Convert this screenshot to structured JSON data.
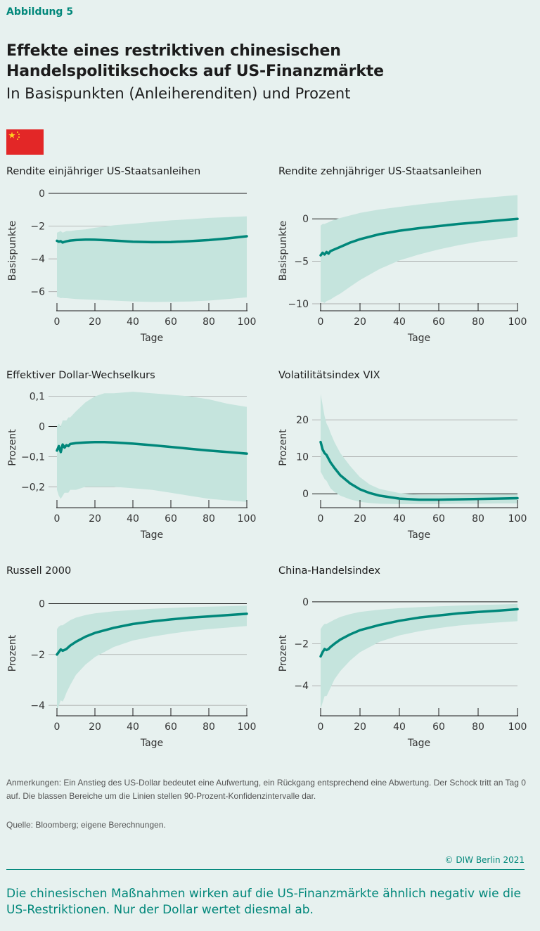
{
  "figure_label": "Abbildung 5",
  "title": "Effekte eines restriktiven chinesischen Handelspolitikschocks auf US-Finanzmärkte",
  "subtitle": "In Basispunkten (Anleiherenditen) und Prozent",
  "flag": {
    "name": "china-flag",
    "bg_color": "#e32727",
    "star_color": "#ffd21f"
  },
  "colors": {
    "line": "#00877a",
    "band": "#c5e4dd",
    "axis": "#1c1c1c",
    "grid": "#9a9a9a"
  },
  "notes": "Anmerkungen: Ein Anstieg des US-Dollar bedeutet eine Aufwertung, ein Rückgang entsprechend eine Abwertung. Der Schock tritt an Tag 0 auf. Die blassen Bereiche um die Linien stellen 90-Prozent-Konfidenzintervalle dar.",
  "source": "Quelle: Bloomberg; eigene Berechnungen.",
  "credit": "© DIW Berlin 2021",
  "takeaway": "Die chinesischen Maßnahmen wirken auf die US-Finanzmärkte ähnlich negativ wie die US-Restriktionen. Nur der Dollar wertet diesmal ab.",
  "chart_data": [
    {
      "type": "line",
      "title": "Rendite einjähriger US-Staatsanleihen",
      "xlabel": "Tage",
      "ylabel": "Basispunkte",
      "xlim": [
        0,
        100
      ],
      "ylim": [
        -7,
        0
      ],
      "xticks": [
        0,
        20,
        40,
        60,
        80,
        100
      ],
      "xtick_labels": [
        "0",
        "20",
        "40",
        "60",
        "80",
        "100"
      ],
      "yticks": [
        0,
        -2,
        -4,
        -6
      ],
      "ytick_labels": [
        "0",
        "−2",
        "−4",
        "−6"
      ],
      "x": [
        0,
        1,
        2,
        3,
        4,
        5,
        7,
        10,
        15,
        20,
        30,
        40,
        50,
        60,
        70,
        80,
        90,
        100
      ],
      "series": [
        {
          "values": [
            -2.9,
            -2.95,
            -2.92,
            -3.0,
            -2.96,
            -2.93,
            -2.88,
            -2.85,
            -2.82,
            -2.83,
            -2.88,
            -2.95,
            -2.98,
            -2.97,
            -2.92,
            -2.85,
            -2.75,
            -2.62
          ],
          "lower": [
            -6.3,
            -6.35,
            -6.4,
            -6.38,
            -6.4,
            -6.4,
            -6.42,
            -6.45,
            -6.48,
            -6.5,
            -6.55,
            -6.6,
            -6.63,
            -6.62,
            -6.6,
            -6.55,
            -6.45,
            -6.35
          ],
          "upper": [
            -2.4,
            -2.35,
            -2.3,
            -2.4,
            -2.35,
            -2.3,
            -2.3,
            -2.25,
            -2.2,
            -2.1,
            -1.95,
            -1.85,
            -1.75,
            -1.65,
            -1.58,
            -1.5,
            -1.45,
            -1.4
          ]
        }
      ]
    },
    {
      "type": "line",
      "title": "Rendite zehnjähriger US-Staatsanleihen",
      "xlabel": "Tage",
      "ylabel": "Basispunkte",
      "xlim": [
        0,
        100
      ],
      "ylim": [
        -10.5,
        3
      ],
      "xticks": [
        0,
        20,
        40,
        60,
        80,
        100
      ],
      "xtick_labels": [
        "0",
        "20",
        "40",
        "60",
        "80",
        "100"
      ],
      "yticks": [
        0,
        -5,
        -10
      ],
      "ytick_labels": [
        "0",
        "−5",
        "−10"
      ],
      "x": [
        0,
        1,
        2,
        3,
        4,
        5,
        7,
        10,
        15,
        20,
        30,
        40,
        50,
        60,
        70,
        80,
        90,
        100
      ],
      "series": [
        {
          "values": [
            -4.3,
            -4.0,
            -4.2,
            -3.9,
            -4.1,
            -3.8,
            -3.6,
            -3.3,
            -2.8,
            -2.4,
            -1.8,
            -1.4,
            -1.1,
            -0.85,
            -0.6,
            -0.4,
            -0.2,
            0.0
          ],
          "lower": [
            -9.8,
            -9.8,
            -9.9,
            -9.7,
            -9.6,
            -9.5,
            -9.2,
            -8.8,
            -8.0,
            -7.2,
            -5.9,
            -4.9,
            -4.2,
            -3.6,
            -3.1,
            -2.7,
            -2.4,
            -2.1
          ],
          "upper": [
            -0.8,
            -0.6,
            -0.6,
            -0.5,
            -0.4,
            -0.3,
            -0.1,
            0.1,
            0.4,
            0.7,
            1.1,
            1.4,
            1.7,
            1.95,
            2.2,
            2.4,
            2.6,
            2.8
          ]
        }
      ]
    },
    {
      "type": "line",
      "title": "Effektiver Dollar-Wechselkurs",
      "xlabel": "Tage",
      "ylabel": "Prozent",
      "xlim": [
        0,
        100
      ],
      "ylim": [
        -0.26,
        0.12
      ],
      "xticks": [
        0,
        20,
        40,
        60,
        80,
        100
      ],
      "xtick_labels": [
        "0",
        "20",
        "40",
        "60",
        "80",
        "100"
      ],
      "yticks": [
        0.1,
        0,
        -0.1,
        -0.2
      ],
      "ytick_labels": [
        "0,1",
        "0",
        "−0,1",
        "−0,2"
      ],
      "x": [
        0,
        1,
        2,
        3,
        4,
        5,
        6,
        7,
        10,
        15,
        20,
        25,
        30,
        40,
        50,
        60,
        70,
        80,
        90,
        100
      ],
      "series": [
        {
          "values": [
            -0.08,
            -0.065,
            -0.085,
            -0.06,
            -0.07,
            -0.062,
            -0.065,
            -0.058,
            -0.055,
            -0.053,
            -0.052,
            -0.052,
            -0.053,
            -0.057,
            -0.062,
            -0.068,
            -0.074,
            -0.08,
            -0.085,
            -0.09
          ],
          "lower": [
            -0.21,
            -0.23,
            -0.24,
            -0.23,
            -0.22,
            -0.22,
            -0.22,
            -0.21,
            -0.21,
            -0.2,
            -0.2,
            -0.2,
            -0.2,
            -0.205,
            -0.21,
            -0.22,
            -0.23,
            -0.24,
            -0.245,
            -0.25
          ],
          "upper": [
            0.0,
            0.01,
            0.0,
            0.02,
            0.02,
            0.02,
            0.03,
            0.03,
            0.05,
            0.08,
            0.1,
            0.11,
            0.11,
            0.115,
            0.11,
            0.105,
            0.1,
            0.09,
            0.075,
            0.065
          ]
        }
      ]
    },
    {
      "type": "line",
      "title": "Volatilitätsindex VIX",
      "xlabel": "Tage",
      "ylabel": "Prozent",
      "xlim": [
        0,
        100
      ],
      "ylim": [
        -3,
        28
      ],
      "xticks": [
        0,
        20,
        40,
        60,
        80,
        100
      ],
      "xtick_labels": [
        "0",
        "20",
        "40",
        "60",
        "80",
        "100"
      ],
      "yticks": [
        20,
        10,
        0
      ],
      "ytick_labels": [
        "20",
        "10",
        "0"
      ],
      "x": [
        0,
        1,
        2,
        3,
        4,
        5,
        7,
        10,
        15,
        20,
        25,
        30,
        40,
        50,
        60,
        70,
        80,
        90,
        100
      ],
      "series": [
        {
          "values": [
            14.0,
            12.0,
            11.0,
            10.5,
            9.5,
            8.5,
            7.0,
            5.0,
            2.8,
            1.2,
            0.2,
            -0.5,
            -1.3,
            -1.6,
            -1.6,
            -1.5,
            -1.4,
            -1.3,
            -1.2
          ],
          "lower": [
            6.0,
            5.0,
            4.0,
            3.5,
            2.5,
            1.5,
            0.5,
            -0.5,
            -1.5,
            -2.2,
            -2.5,
            -2.7,
            -2.8,
            -2.8,
            -2.8,
            -2.7,
            -2.7,
            -2.6,
            -2.6
          ],
          "upper": [
            27.0,
            24.0,
            21.0,
            19.0,
            18.0,
            16.5,
            14.0,
            11.0,
            7.5,
            4.5,
            2.5,
            1.3,
            0.2,
            -0.3,
            -0.4,
            -0.4,
            -0.3,
            -0.2,
            -0.1
          ]
        }
      ]
    },
    {
      "type": "line",
      "title": "Russell 2000",
      "xlabel": "Tage",
      "ylabel": "Prozent",
      "xlim": [
        0,
        100
      ],
      "ylim": [
        -4.3,
        0.4
      ],
      "xticks": [
        0,
        20,
        40,
        60,
        80,
        100
      ],
      "xtick_labels": [
        "0",
        "20",
        "40",
        "60",
        "80",
        "100"
      ],
      "yticks": [
        0,
        -2,
        -4
      ],
      "ytick_labels": [
        "0",
        "−2",
        "−4"
      ],
      "x": [
        0,
        1,
        2,
        3,
        4,
        5,
        7,
        10,
        15,
        20,
        30,
        40,
        50,
        60,
        70,
        80,
        90,
        100
      ],
      "series": [
        {
          "values": [
            -2.0,
            -1.9,
            -1.8,
            -1.85,
            -1.82,
            -1.78,
            -1.65,
            -1.5,
            -1.3,
            -1.15,
            -0.95,
            -0.8,
            -0.7,
            -0.62,
            -0.55,
            -0.5,
            -0.45,
            -0.4
          ],
          "lower": [
            -4.2,
            -4.0,
            -3.8,
            -3.85,
            -3.7,
            -3.5,
            -3.2,
            -2.8,
            -2.4,
            -2.1,
            -1.7,
            -1.45,
            -1.3,
            -1.18,
            -1.08,
            -1.0,
            -0.94,
            -0.88
          ],
          "upper": [
            -1.0,
            -0.9,
            -0.85,
            -0.85,
            -0.8,
            -0.75,
            -0.65,
            -0.55,
            -0.45,
            -0.38,
            -0.3,
            -0.25,
            -0.2,
            -0.17,
            -0.14,
            -0.12,
            -0.1,
            -0.08
          ]
        }
      ]
    },
    {
      "type": "line",
      "title": "China-Handelsindex",
      "xlabel": "Tage",
      "ylabel": "Prozent",
      "xlim": [
        0,
        100
      ],
      "ylim": [
        -5.3,
        0.4
      ],
      "xticks": [
        0,
        20,
        40,
        60,
        80,
        100
      ],
      "xtick_labels": [
        "0",
        "20",
        "40",
        "60",
        "80",
        "100"
      ],
      "yticks": [
        0,
        -2,
        -4
      ],
      "ytick_labels": [
        "0",
        "−2",
        "−4"
      ],
      "x": [
        0,
        1,
        2,
        3,
        4,
        5,
        7,
        10,
        15,
        20,
        30,
        40,
        50,
        60,
        70,
        80,
        90,
        100
      ],
      "series": [
        {
          "values": [
            -2.6,
            -2.4,
            -2.25,
            -2.3,
            -2.25,
            -2.15,
            -2.0,
            -1.8,
            -1.55,
            -1.35,
            -1.1,
            -0.9,
            -0.75,
            -0.65,
            -0.55,
            -0.48,
            -0.42,
            -0.35
          ],
          "lower": [
            -5.1,
            -4.8,
            -4.5,
            -4.5,
            -4.3,
            -4.1,
            -3.7,
            -3.3,
            -2.8,
            -2.4,
            -1.9,
            -1.6,
            -1.4,
            -1.25,
            -1.13,
            -1.05,
            -0.98,
            -0.92
          ],
          "upper": [
            -1.3,
            -1.15,
            -1.05,
            -1.05,
            -1.0,
            -0.95,
            -0.85,
            -0.72,
            -0.58,
            -0.48,
            -0.37,
            -0.3,
            -0.25,
            -0.21,
            -0.18,
            -0.15,
            -0.13,
            -0.1
          ]
        }
      ]
    }
  ]
}
